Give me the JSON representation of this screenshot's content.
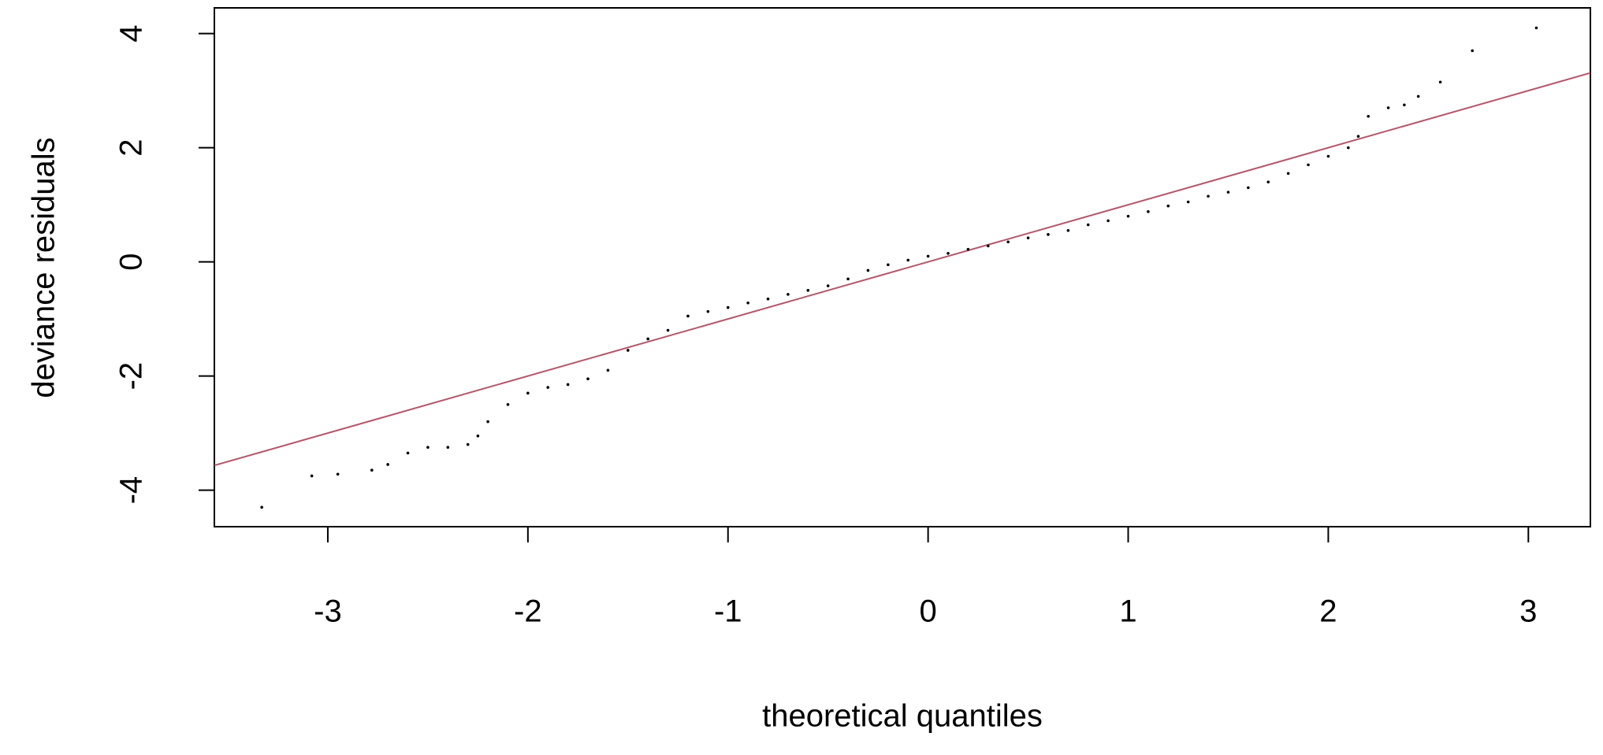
{
  "chart_data": {
    "type": "scatter",
    "x_label": "theoretical quantiles",
    "y_label": "deviance residuals",
    "x": [
      -3.33,
      -3.08,
      -2.95,
      -2.78,
      -2.7,
      -2.6,
      -2.5,
      -2.4,
      -2.3,
      -2.25,
      -2.2,
      -2.1,
      -2.0,
      -1.9,
      -1.8,
      -1.7,
      -1.6,
      -1.5,
      -1.4,
      -1.3,
      -1.2,
      -1.1,
      -1.0,
      -0.9,
      -0.8,
      -0.7,
      -0.6,
      -0.5,
      -0.4,
      -0.3,
      -0.2,
      -0.1,
      0,
      0.1,
      0.2,
      0.3,
      0.4,
      0.5,
      0.6,
      0.7,
      0.8,
      0.9,
      1.0,
      1.1,
      1.2,
      1.3,
      1.4,
      1.5,
      1.6,
      1.7,
      1.8,
      1.9,
      2.0,
      2.1,
      2.15,
      2.2,
      2.3,
      2.38,
      2.45,
      2.56,
      2.72,
      3.04
    ],
    "values": [
      -4.3,
      -3.75,
      -3.72,
      -3.65,
      -3.55,
      -3.35,
      -3.25,
      -3.25,
      -3.2,
      -3.05,
      -2.8,
      -2.5,
      -2.3,
      -2.2,
      -2.15,
      -2.05,
      -1.9,
      -1.55,
      -1.35,
      -1.2,
      -0.95,
      -0.87,
      -0.8,
      -0.72,
      -0.65,
      -0.57,
      -0.5,
      -0.42,
      -0.3,
      -0.15,
      -0.05,
      0.03,
      0.1,
      0.15,
      0.22,
      0.28,
      0.35,
      0.42,
      0.48,
      0.55,
      0.65,
      0.72,
      0.8,
      0.88,
      0.98,
      1.05,
      1.15,
      1.22,
      1.3,
      1.4,
      1.55,
      1.7,
      1.85,
      2.0,
      2.2,
      2.55,
      2.7,
      2.75,
      2.9,
      3.15,
      3.7,
      4.1
    ],
    "color": "#000000",
    "ref_line": {
      "slope": 1,
      "intercept": 0,
      "color": "#b5566a"
    },
    "xlim": [
      -3.567,
      3.31
    ],
    "ylim": [
      -4.64,
      4.45
    ],
    "xticks": [
      -3,
      -2,
      -1,
      0,
      1,
      2,
      3
    ],
    "yticks": [
      -4,
      -2,
      0,
      2,
      4
    ]
  }
}
